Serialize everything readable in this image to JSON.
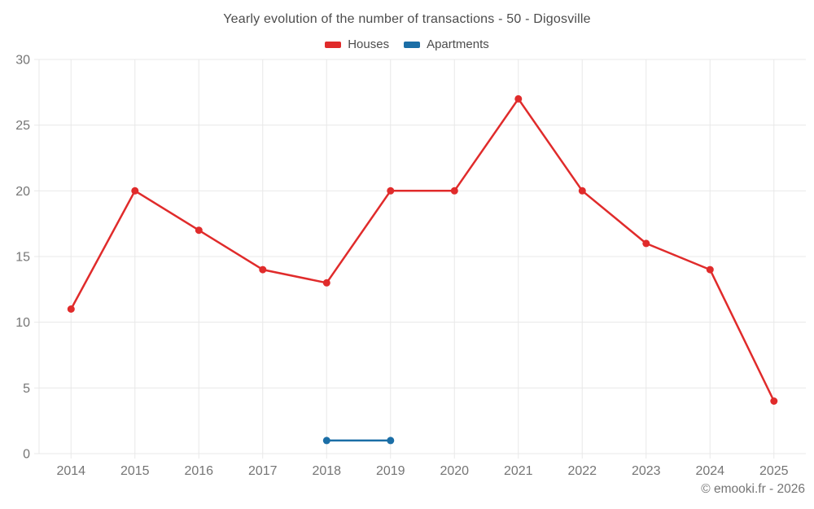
{
  "footer": {
    "credit": "© emooki.fr - 2026"
  },
  "colors": {
    "houses": "#e02b2b",
    "apartments": "#1b6ea6",
    "gridline": "#e8e8e8",
    "tick_text": "#757575",
    "title_text": "#4c4c4c"
  },
  "chart_data": {
    "type": "line",
    "title": "Yearly evolution of the number of transactions - 50 - Digosville",
    "x": [
      "2014",
      "2015",
      "2016",
      "2017",
      "2018",
      "2019",
      "2020",
      "2021",
      "2022",
      "2023",
      "2024",
      "2025"
    ],
    "series": [
      {
        "name": "Houses",
        "color": "#e02b2b",
        "values": [
          11,
          20,
          17,
          14,
          13,
          20,
          20,
          27,
          20,
          16,
          14,
          4
        ]
      },
      {
        "name": "Apartments",
        "color": "#1b6ea6",
        "values": [
          null,
          null,
          null,
          null,
          1,
          1,
          null,
          null,
          null,
          null,
          null,
          null
        ]
      }
    ],
    "xlabel": "",
    "ylabel": "",
    "ylim": [
      0,
      30
    ],
    "yticks": [
      0,
      5,
      10,
      15,
      20,
      25,
      30
    ],
    "grid": true,
    "legend_position": "top"
  }
}
